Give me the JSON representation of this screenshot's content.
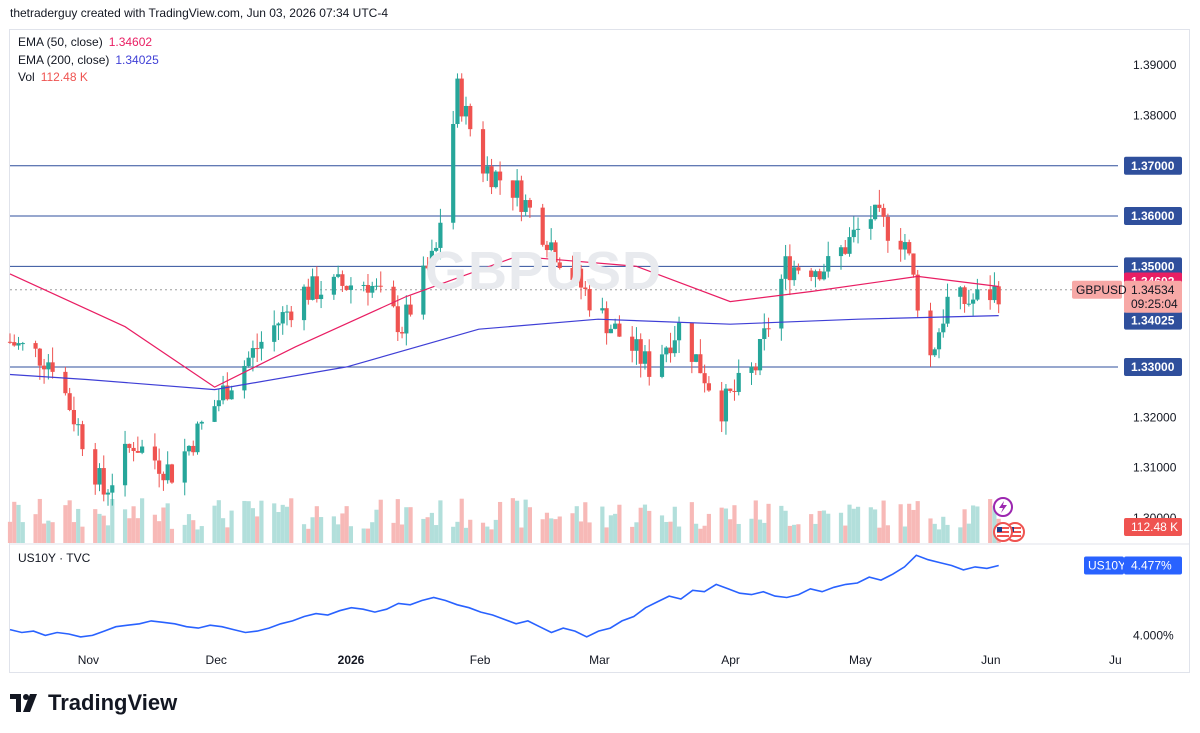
{
  "header": {
    "attribution": "thetraderguy created with TradingView.com, Jun 03, 2026 07:34 UTC-4"
  },
  "legend": {
    "ema50_label": "EMA (50, close)",
    "ema50_value": "1.34602",
    "ema200_label": "EMA (200, close)",
    "ema200_value": "1.34025",
    "vol_label": "Vol",
    "vol_value": "112.48 K"
  },
  "watermark": "GBPUSD",
  "price_axis": {
    "ticks": [
      "1.39000",
      "1.38000",
      "1.37000",
      "1.36000",
      "1.35000",
      "1.34000",
      "1.33000",
      "1.32000",
      "1.31000",
      "1.30000"
    ],
    "horizontal_lines": [
      1.37,
      1.36,
      1.35,
      1.33
    ],
    "labels": {
      "l137": "1.37000",
      "l136": "1.36000",
      "l135": "1.35000",
      "l133": "1.33000",
      "ema50": "1.34602",
      "symbol": "GBPUSD",
      "last": "1.34534",
      "countdown": "09:25:04",
      "ema200": "1.34025",
      "vol": "112.48 K"
    }
  },
  "time_axis": {
    "labels": [
      "Nov",
      "Dec",
      "2026",
      "Feb",
      "Mar",
      "Apr",
      "May",
      "Jun",
      "Ju"
    ]
  },
  "lower_pane": {
    "title": "US10Y · TVC",
    "symbol_label": "US10Y",
    "value_label": "4.477%",
    "tick_label": "4.000%"
  },
  "footer": {
    "brand": "TradingView"
  },
  "colors": {
    "up": "#26a69a",
    "down": "#ef5350",
    "ema50": "#e91e63",
    "ema200": "#3f3fd6",
    "hline": "#2f4f9c",
    "us10y": "#2962ff",
    "vol_up": "#b2dfdb",
    "vol_down": "#f7b9b7"
  },
  "chart_data": [
    {
      "type": "candlestick",
      "symbol": "GBPUSD",
      "timeframe": "daily",
      "x_range": [
        "2025-10-14",
        "2026-06-03"
      ],
      "ylim": [
        1.295,
        1.395
      ],
      "candle_anchors": [
        {
          "date": "2025-10-14",
          "close": 1.335
        },
        {
          "date": "2025-10-24",
          "close": 1.331
        },
        {
          "date": "2025-11-05",
          "close": 1.305
        },
        {
          "date": "2025-11-12",
          "close": 1.315
        },
        {
          "date": "2025-11-21",
          "close": 1.309
        },
        {
          "date": "2025-12-03",
          "close": 1.325
        },
        {
          "date": "2025-12-12",
          "close": 1.335
        },
        {
          "date": "2025-12-22",
          "close": 1.345
        },
        {
          "date": "2026-01-06",
          "close": 1.347
        },
        {
          "date": "2026-01-14",
          "close": 1.338
        },
        {
          "date": "2026-01-22",
          "close": 1.353
        },
        {
          "date": "2026-01-27",
          "close": 1.385
        },
        {
          "date": "2026-02-02",
          "close": 1.37
        },
        {
          "date": "2026-02-10",
          "close": 1.365
        },
        {
          "date": "2026-02-20",
          "close": 1.352
        },
        {
          "date": "2026-03-02",
          "close": 1.34
        },
        {
          "date": "2026-03-13",
          "close": 1.33
        },
        {
          "date": "2026-03-20",
          "close": 1.338
        },
        {
          "date": "2026-03-30",
          "close": 1.322
        },
        {
          "date": "2026-04-07",
          "close": 1.33
        },
        {
          "date": "2026-04-14",
          "close": 1.35
        },
        {
          "date": "2026-04-24",
          "close": 1.35
        },
        {
          "date": "2026-05-04",
          "close": 1.36
        },
        {
          "date": "2026-05-12",
          "close": 1.355
        },
        {
          "date": "2026-05-18",
          "close": 1.332
        },
        {
          "date": "2026-05-22",
          "close": 1.343
        },
        {
          "date": "2026-05-27",
          "close": 1.343
        },
        {
          "date": "2026-06-03",
          "close": 1.3453
        }
      ],
      "ema50": [
        {
          "date": "2025-10-14",
          "value": 1.3485
        },
        {
          "date": "2025-11-10",
          "value": 1.338
        },
        {
          "date": "2025-12-01",
          "value": 1.326
        },
        {
          "date": "2025-12-20",
          "value": 1.334
        },
        {
          "date": "2026-01-15",
          "value": 1.344
        },
        {
          "date": "2026-02-10",
          "value": 1.352
        },
        {
          "date": "2026-03-10",
          "value": 1.35
        },
        {
          "date": "2026-04-01",
          "value": 1.343
        },
        {
          "date": "2026-04-20",
          "value": 1.345
        },
        {
          "date": "2026-05-15",
          "value": 1.348
        },
        {
          "date": "2026-06-03",
          "value": 1.346
        }
      ],
      "ema200": [
        {
          "date": "2025-10-14",
          "value": 1.3285
        },
        {
          "date": "2025-11-01",
          "value": 1.3275
        },
        {
          "date": "2025-12-01",
          "value": 1.3255
        },
        {
          "date": "2026-01-01",
          "value": 1.33
        },
        {
          "date": "2026-02-01",
          "value": 1.3375
        },
        {
          "date": "2026-03-01",
          "value": 1.3395
        },
        {
          "date": "2026-04-01",
          "value": 1.3385
        },
        {
          "date": "2026-05-01",
          "value": 1.3395
        },
        {
          "date": "2026-06-03",
          "value": 1.3402
        }
      ],
      "last_price": 1.34534
    },
    {
      "type": "line",
      "title": "US10Y · TVC",
      "x_range": [
        "2025-10-14",
        "2026-06-03"
      ],
      "values_percent": [
        4.04,
        4.02,
        4.03,
        4.0,
        4.02,
        4.01,
        3.99,
        4.0,
        4.03,
        4.06,
        4.07,
        4.08,
        4.1,
        4.09,
        4.08,
        4.06,
        4.05,
        4.07,
        4.06,
        4.04,
        4.02,
        4.03,
        4.05,
        4.08,
        4.1,
        4.13,
        4.15,
        4.14,
        4.17,
        4.19,
        4.18,
        4.16,
        4.18,
        4.22,
        4.21,
        4.24,
        4.26,
        4.24,
        4.21,
        4.19,
        4.16,
        4.14,
        4.11,
        4.08,
        4.1,
        4.06,
        4.02,
        4.05,
        4.03,
        3.99,
        4.03,
        4.05,
        4.1,
        4.13,
        4.19,
        4.23,
        4.27,
        4.25,
        4.31,
        4.3,
        4.35,
        4.32,
        4.29,
        4.28,
        4.3,
        4.27,
        4.26,
        4.28,
        4.32,
        4.3,
        4.33,
        4.35,
        4.36,
        4.4,
        4.38,
        4.42,
        4.47,
        4.55,
        4.52,
        4.5,
        4.48,
        4.45,
        4.47,
        4.46,
        4.48
      ],
      "ylim": [
        3.9,
        4.6
      ]
    }
  ]
}
